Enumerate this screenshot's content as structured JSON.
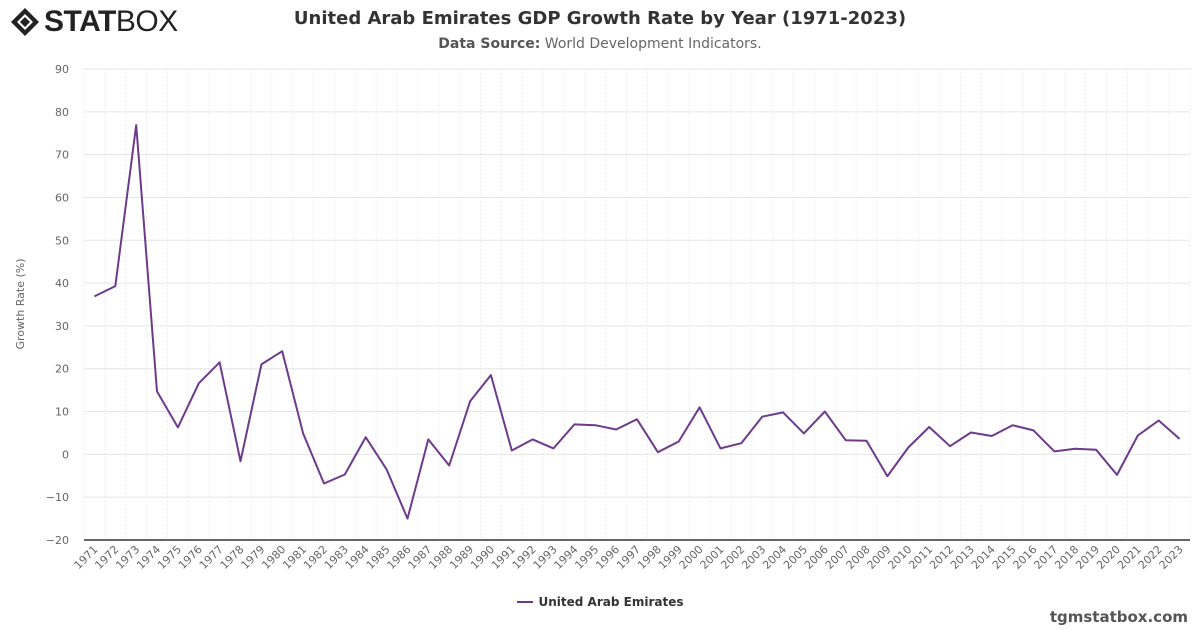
{
  "brand": {
    "logo_bold": "STAT",
    "logo_light": "BOX"
  },
  "header": {
    "title": "United Arab Emirates GDP Growth Rate by Year (1971-2023)",
    "subtitle_label": "Data Source:",
    "subtitle_value": "World Development Indicators."
  },
  "footer": {
    "credit": "tgmstatbox.com"
  },
  "chart_data": {
    "type": "line",
    "title": "United Arab Emirates GDP Growth Rate by Year (1971-2023)",
    "xlabel": "",
    "ylabel": "Growth Rate (%)",
    "ylim": [
      -20,
      90
    ],
    "yticks": [
      -20,
      -10,
      0,
      10,
      20,
      30,
      40,
      50,
      60,
      70,
      80,
      90
    ],
    "grid": true,
    "legend_position": "bottom",
    "color": "#6e3a8c",
    "categories": [
      "1971",
      "1972",
      "1973",
      "1974",
      "1975",
      "1976",
      "1977",
      "1978",
      "1979",
      "1980",
      "1981",
      "1982",
      "1983",
      "1984",
      "1985",
      "1986",
      "1987",
      "1988",
      "1989",
      "1990",
      "1991",
      "1992",
      "1993",
      "1994",
      "1995",
      "1996",
      "1997",
      "1998",
      "1999",
      "2000",
      "2001",
      "2002",
      "2003",
      "2004",
      "2005",
      "2006",
      "2007",
      "2008",
      "2009",
      "2010",
      "2011",
      "2012",
      "2013",
      "2014",
      "2015",
      "2016",
      "2017",
      "2018",
      "2019",
      "2020",
      "2021",
      "2022",
      "2023"
    ],
    "series": [
      {
        "name": "United Arab Emirates",
        "values": [
          36.9,
          39.3,
          76.9,
          14.7,
          6.3,
          16.6,
          21.5,
          -1.6,
          21.0,
          24.1,
          4.9,
          -6.8,
          -4.7,
          4.0,
          -3.5,
          -15.0,
          3.5,
          -2.6,
          12.4,
          18.5,
          0.9,
          3.5,
          1.4,
          7.0,
          6.8,
          5.8,
          8.2,
          0.5,
          3.0,
          11.0,
          1.4,
          2.6,
          8.8,
          9.8,
          4.9,
          10.0,
          3.3,
          3.2,
          -5.1,
          1.6,
          6.4,
          1.9,
          5.1,
          4.3,
          6.8,
          5.6,
          0.7,
          1.3,
          1.1,
          -4.8,
          4.4,
          7.9,
          3.6
        ]
      }
    ]
  }
}
